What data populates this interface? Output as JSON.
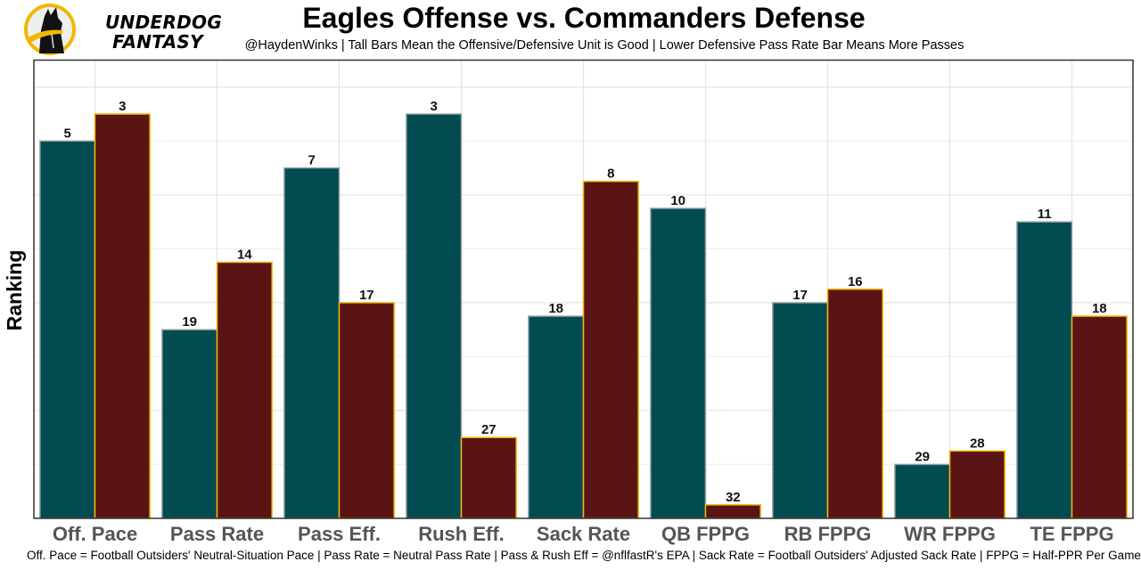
{
  "brand": {
    "name_line1": "UNDERDOG",
    "name_line2": "FANTASY",
    "logo_icon": "underdog-dog-logo-icon",
    "ring_color": "#f2b705"
  },
  "header": {
    "title": "Eagles Offense vs. Commanders Defense",
    "subtitle": "@HaydenWinks | Tall Bars Mean the Offensive/Defensive Unit is Good | Lower Defensive Pass Rate Bar Means More Passes"
  },
  "footer": {
    "note": "Off. Pace = Football Outsiders' Neutral-Situation Pace | Pass Rate = Neutral Pass Rate | Pass & Rush Eff = @nflfastR's EPA | Sack Rate = Football Outsiders' Adjusted Sack Rate | FPPG = Half-PPR Per Game"
  },
  "chart_data": {
    "type": "bar",
    "title": "Eagles Offense vs. Commanders Defense",
    "xlabel": "",
    "ylabel": "Ranking",
    "value_transform": "bar height = 33 - rank (rank 1 tallest); labels show rank",
    "ylim_rank_scale": [
      0,
      34
    ],
    "grid": true,
    "y_tick_labels_shown": false,
    "categories": [
      "Off. Pace",
      "Pass Rate",
      "Pass Eff.",
      "Rush Eff.",
      "Sack Rate",
      "QB FPPG",
      "RB FPPG",
      "WR FPPG",
      "TE FPPG"
    ],
    "series": [
      {
        "name": "Eagles Offense",
        "color": "#024b50",
        "border": "#9aa3a6",
        "ranks": [
          5,
          19,
          7,
          3,
          18,
          10,
          17,
          29,
          11
        ]
      },
      {
        "name": "Commanders Defense",
        "color": "#5a1414",
        "border": "#f2b705",
        "ranks": [
          3,
          14,
          17,
          27,
          8,
          32,
          16,
          28,
          18
        ]
      }
    ]
  }
}
